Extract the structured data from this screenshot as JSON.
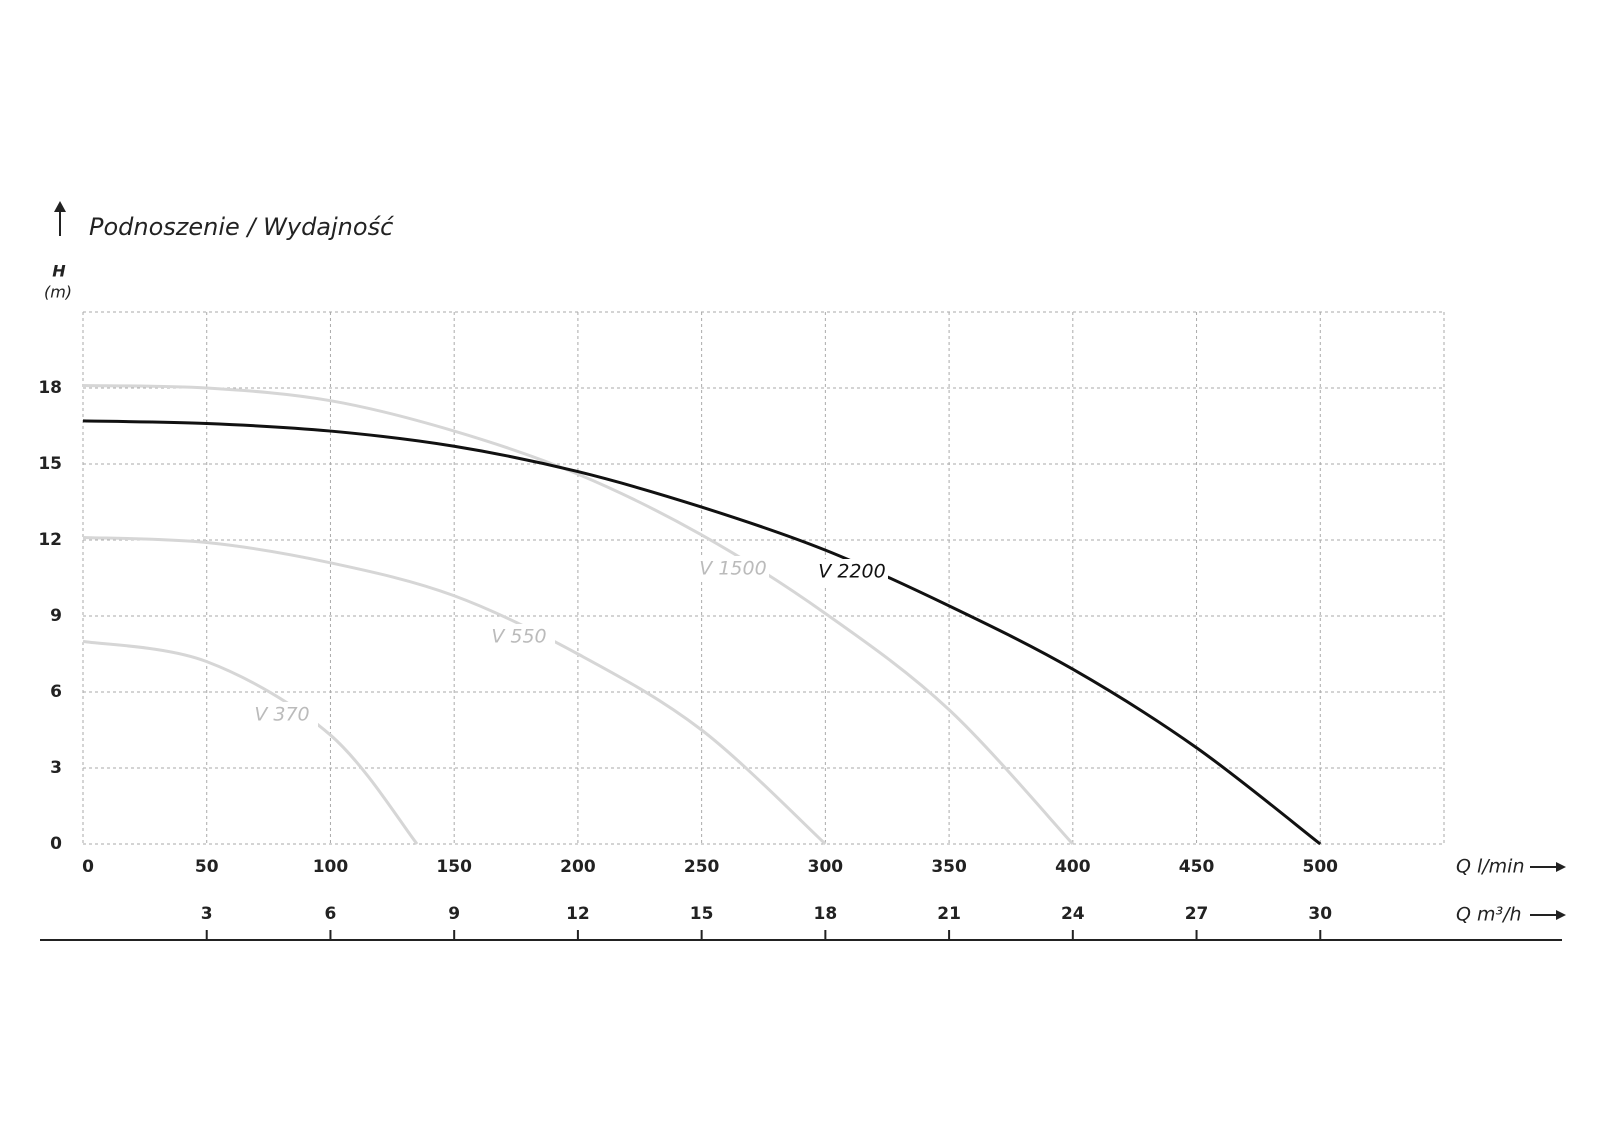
{
  "chart_data": {
    "type": "line",
    "title": "Podnoszenie / Wydajność",
    "y_label": "H",
    "y_unit": "(m)",
    "x_label": "Q l/min",
    "x2_label": "Q m³/h",
    "xlim": [
      0,
      550
    ],
    "xticks": [
      0,
      50,
      100,
      150,
      200,
      250,
      300,
      350,
      400,
      450,
      500
    ],
    "x2lim": [
      0,
      33
    ],
    "x2ticks": [
      3,
      6,
      9,
      12,
      15,
      18,
      21,
      24,
      27,
      30
    ],
    "ylim": [
      0,
      21
    ],
    "yticks": [
      0,
      3,
      6,
      9,
      12,
      15,
      18
    ],
    "grid": true,
    "series": [
      {
        "name": "V 370",
        "color": "#d6d6d6",
        "x": [
          0,
          50,
          100,
          135
        ],
        "values": [
          8,
          7.2,
          4.3,
          0
        ]
      },
      {
        "name": "V 550",
        "color": "#d6d6d6",
        "x": [
          0,
          50,
          100,
          150,
          200,
          250,
          300
        ],
        "values": [
          12.1,
          11.9,
          11.1,
          9.8,
          7.5,
          4.5,
          0
        ]
      },
      {
        "name": "V 1500",
        "color": "#d6d6d6",
        "x": [
          0,
          50,
          100,
          150,
          200,
          250,
          300,
          350,
          400
        ],
        "values": [
          18.1,
          18,
          17.5,
          16.3,
          14.6,
          12.2,
          9.1,
          5.3,
          0
        ]
      },
      {
        "name": "V 2200",
        "color": "#111111",
        "x": [
          0,
          50,
          100,
          150,
          200,
          250,
          300,
          350,
          400,
          450,
          500
        ],
        "values": [
          16.7,
          16.6,
          16.3,
          15.7,
          14.7,
          13.3,
          11.6,
          9.4,
          6.9,
          3.8,
          0
        ]
      }
    ]
  }
}
